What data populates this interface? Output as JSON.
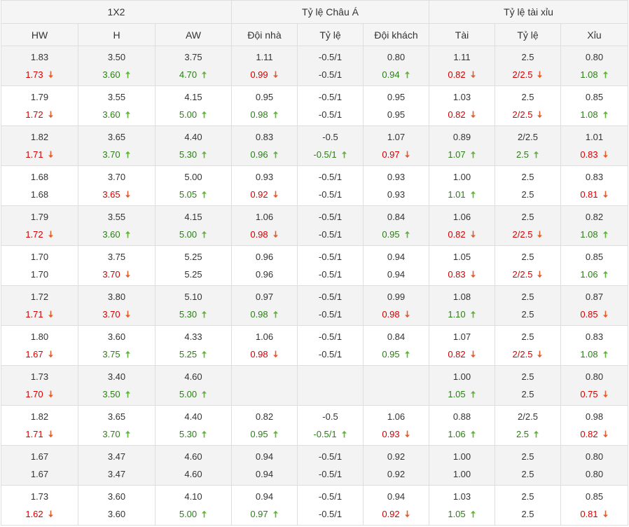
{
  "headers": {
    "groups": [
      "1X2",
      "Tỷ lệ Châu Á",
      "Tỷ lệ tài xỉu"
    ],
    "columns": [
      "HW",
      "H",
      "AW",
      "Đội nhà",
      "Tỷ lệ",
      "Đội khách",
      "Tài",
      "Tỷ lệ",
      "Xỉu"
    ]
  },
  "colors": {
    "up": "#2a7e14",
    "down": "#d40000",
    "arrow_up": "#5fb336",
    "arrow_down": "#e25c2c"
  },
  "arrow_icons": {
    "up": "arrow-up-icon",
    "down": "arrow-down-icon"
  },
  "rows": [
    [
      [
        "1.83",
        "1.73",
        "down"
      ],
      [
        "3.50",
        "3.60",
        "up"
      ],
      [
        "3.75",
        "4.70",
        "up"
      ],
      [
        "1.11",
        "0.99",
        "down"
      ],
      [
        "-0.5/1",
        "-0.5/1",
        "same"
      ],
      [
        "0.80",
        "0.94",
        "up"
      ],
      [
        "1.11",
        "0.82",
        "down"
      ],
      [
        "2.5",
        "2/2.5",
        "down"
      ],
      [
        "0.80",
        "1.08",
        "up"
      ]
    ],
    [
      [
        "1.79",
        "1.72",
        "down"
      ],
      [
        "3.55",
        "3.60",
        "up"
      ],
      [
        "4.15",
        "5.00",
        "up"
      ],
      [
        "0.95",
        "0.98",
        "up"
      ],
      [
        "-0.5/1",
        "-0.5/1",
        "same"
      ],
      [
        "0.95",
        "0.95",
        "same"
      ],
      [
        "1.03",
        "0.82",
        "down"
      ],
      [
        "2.5",
        "2/2.5",
        "down"
      ],
      [
        "0.85",
        "1.08",
        "up"
      ]
    ],
    [
      [
        "1.82",
        "1.71",
        "down"
      ],
      [
        "3.65",
        "3.70",
        "up"
      ],
      [
        "4.40",
        "5.30",
        "up"
      ],
      [
        "0.83",
        "0.96",
        "up"
      ],
      [
        "-0.5",
        "-0.5/1",
        "up"
      ],
      [
        "1.07",
        "0.97",
        "down"
      ],
      [
        "0.89",
        "1.07",
        "up"
      ],
      [
        "2/2.5",
        "2.5",
        "up"
      ],
      [
        "1.01",
        "0.83",
        "down"
      ]
    ],
    [
      [
        "1.68",
        "1.68",
        "same"
      ],
      [
        "3.70",
        "3.65",
        "down"
      ],
      [
        "5.00",
        "5.05",
        "up"
      ],
      [
        "0.93",
        "0.92",
        "down"
      ],
      [
        "-0.5/1",
        "-0.5/1",
        "same"
      ],
      [
        "0.93",
        "0.93",
        "same"
      ],
      [
        "1.00",
        "1.01",
        "up"
      ],
      [
        "2.5",
        "2.5",
        "same"
      ],
      [
        "0.83",
        "0.81",
        "down"
      ]
    ],
    [
      [
        "1.79",
        "1.72",
        "down"
      ],
      [
        "3.55",
        "3.60",
        "up"
      ],
      [
        "4.15",
        "5.00",
        "up"
      ],
      [
        "1.06",
        "0.98",
        "down"
      ],
      [
        "-0.5/1",
        "-0.5/1",
        "same"
      ],
      [
        "0.84",
        "0.95",
        "up"
      ],
      [
        "1.06",
        "0.82",
        "down"
      ],
      [
        "2.5",
        "2/2.5",
        "down"
      ],
      [
        "0.82",
        "1.08",
        "up"
      ]
    ],
    [
      [
        "1.70",
        "1.70",
        "same"
      ],
      [
        "3.75",
        "3.70",
        "down"
      ],
      [
        "5.25",
        "5.25",
        "same"
      ],
      [
        "0.96",
        "0.96",
        "same"
      ],
      [
        "-0.5/1",
        "-0.5/1",
        "same"
      ],
      [
        "0.94",
        "0.94",
        "same"
      ],
      [
        "1.05",
        "0.83",
        "down"
      ],
      [
        "2.5",
        "2/2.5",
        "down"
      ],
      [
        "0.85",
        "1.06",
        "up"
      ]
    ],
    [
      [
        "1.72",
        "1.71",
        "down"
      ],
      [
        "3.80",
        "3.70",
        "down"
      ],
      [
        "5.10",
        "5.30",
        "up"
      ],
      [
        "0.97",
        "0.98",
        "up"
      ],
      [
        "-0.5/1",
        "-0.5/1",
        "same"
      ],
      [
        "0.99",
        "0.98",
        "down"
      ],
      [
        "1.08",
        "1.10",
        "up"
      ],
      [
        "2.5",
        "2.5",
        "same"
      ],
      [
        "0.87",
        "0.85",
        "down"
      ]
    ],
    [
      [
        "1.80",
        "1.67",
        "down"
      ],
      [
        "3.60",
        "3.75",
        "up"
      ],
      [
        "4.33",
        "5.25",
        "up"
      ],
      [
        "1.06",
        "0.98",
        "down"
      ],
      [
        "-0.5/1",
        "-0.5/1",
        "same"
      ],
      [
        "0.84",
        "0.95",
        "up"
      ],
      [
        "1.07",
        "0.82",
        "down"
      ],
      [
        "2.5",
        "2/2.5",
        "down"
      ],
      [
        "0.83",
        "1.08",
        "up"
      ]
    ],
    [
      [
        "1.73",
        "1.70",
        "down"
      ],
      [
        "3.40",
        "3.50",
        "up"
      ],
      [
        "4.60",
        "5.00",
        "up"
      ],
      [
        "",
        "",
        "same"
      ],
      [
        "",
        "",
        "same"
      ],
      [
        "",
        "",
        "same"
      ],
      [
        "1.00",
        "1.05",
        "up"
      ],
      [
        "2.5",
        "2.5",
        "same"
      ],
      [
        "0.80",
        "0.75",
        "down"
      ]
    ],
    [
      [
        "1.82",
        "1.71",
        "down"
      ],
      [
        "3.65",
        "3.70",
        "up"
      ],
      [
        "4.40",
        "5.30",
        "up"
      ],
      [
        "0.82",
        "0.95",
        "up"
      ],
      [
        "-0.5",
        "-0.5/1",
        "up"
      ],
      [
        "1.06",
        "0.93",
        "down"
      ],
      [
        "0.88",
        "1.06",
        "up"
      ],
      [
        "2/2.5",
        "2.5",
        "up"
      ],
      [
        "0.98",
        "0.82",
        "down"
      ]
    ],
    [
      [
        "1.67",
        "1.67",
        "same"
      ],
      [
        "3.47",
        "3.47",
        "same"
      ],
      [
        "4.60",
        "4.60",
        "same"
      ],
      [
        "0.94",
        "0.94",
        "same"
      ],
      [
        "-0.5/1",
        "-0.5/1",
        "same"
      ],
      [
        "0.92",
        "0.92",
        "same"
      ],
      [
        "1.00",
        "1.00",
        "same"
      ],
      [
        "2.5",
        "2.5",
        "same"
      ],
      [
        "0.80",
        "0.80",
        "same"
      ]
    ],
    [
      [
        "1.73",
        "1.62",
        "down"
      ],
      [
        "3.60",
        "3.60",
        "same"
      ],
      [
        "4.10",
        "5.00",
        "up"
      ],
      [
        "0.94",
        "0.97",
        "up"
      ],
      [
        "-0.5/1",
        "-0.5/1",
        "same"
      ],
      [
        "0.94",
        "0.92",
        "down"
      ],
      [
        "1.03",
        "1.05",
        "up"
      ],
      [
        "2.5",
        "2.5",
        "same"
      ],
      [
        "0.85",
        "0.81",
        "down"
      ]
    ]
  ]
}
